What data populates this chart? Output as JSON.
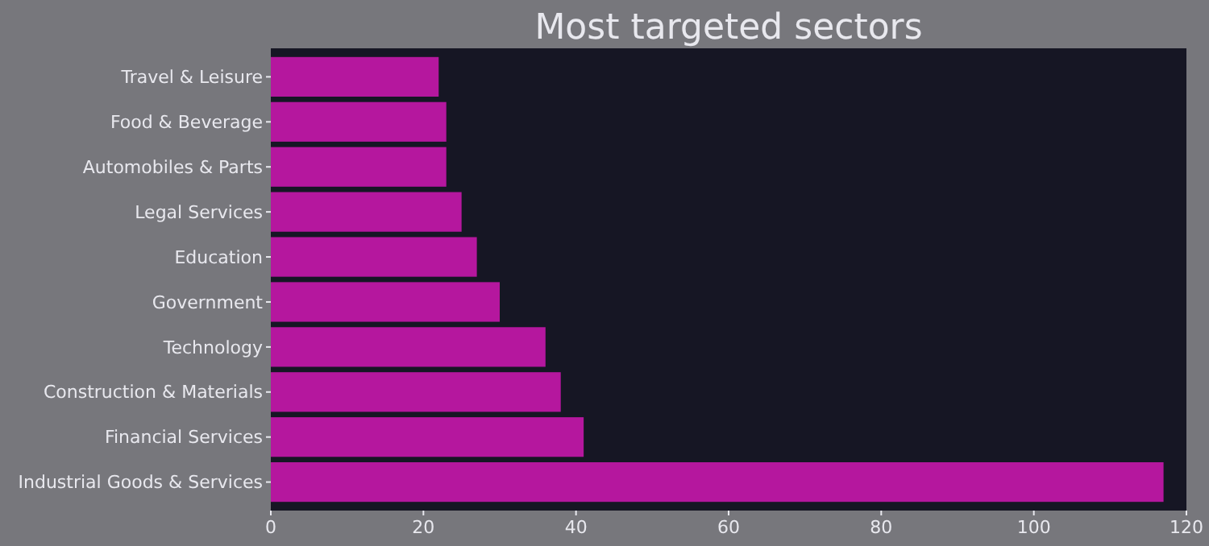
{
  "chart_data": {
    "type": "bar",
    "orientation": "horizontal",
    "title": "Most targeted sectors",
    "categories": [
      "Travel & Leisure",
      "Food & Beverage",
      "Automobiles & Parts",
      "Legal Services",
      "Education",
      "Government",
      "Technology",
      "Construction & Materials",
      "Financial Services",
      "Industrial Goods & Services"
    ],
    "values": [
      22,
      23,
      23,
      25,
      27,
      30,
      36,
      38,
      41,
      117
    ],
    "color": "#b5179e",
    "xlim": [
      0,
      120
    ],
    "xticks": [
      0,
      20,
      40,
      60,
      80,
      100,
      120
    ]
  }
}
